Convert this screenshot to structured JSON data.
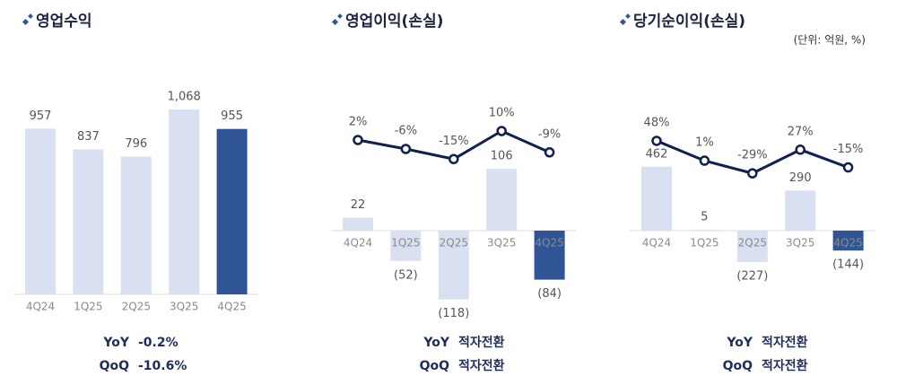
{
  "chart_data": [
    {
      "type": "bar",
      "title": "영업수익",
      "categories": [
        "4Q24",
        "1Q25",
        "2Q25",
        "3Q25",
        "4Q25"
      ],
      "series": [
        {
          "type": "bar",
          "values": [
            957,
            837,
            796,
            1068,
            955
          ],
          "value_labels": [
            "957",
            "837",
            "796",
            "1,068",
            "955"
          ],
          "colors": [
            "#d9e0f2",
            "#d9e0f2",
            "#d9e0f2",
            "#d9e0f2",
            "#2f5597"
          ]
        }
      ],
      "summary": [
        {
          "label": "YoY",
          "value": "-0.2%"
        },
        {
          "label": "QoQ",
          "value": "-10.6%"
        }
      ]
    },
    {
      "type": "combo",
      "title": "영업이익(손실)",
      "categories": [
        "4Q24",
        "1Q25",
        "2Q25",
        "3Q25",
        "4Q25"
      ],
      "series": [
        {
          "type": "bar",
          "values": [
            22,
            -52,
            -118,
            106,
            -84
          ],
          "value_labels": [
            "22",
            "(52)",
            "(118)",
            "106",
            "(84)"
          ],
          "colors": [
            "#d9e0f2",
            "#d9e0f2",
            "#d9e0f2",
            "#d9e0f2",
            "#2f5597"
          ]
        },
        {
          "type": "line",
          "axis": "y2",
          "color": "#102050",
          "values": [
            2,
            -6,
            -15,
            10,
            -9
          ],
          "value_labels": [
            "2%",
            "-6%",
            "-15%",
            "10%",
            "-9%"
          ]
        }
      ],
      "summary": [
        {
          "label": "YoY",
          "value": "적자전환"
        },
        {
          "label": "QoQ",
          "value": "적자전환"
        }
      ]
    },
    {
      "type": "combo",
      "title": "당기순이익(손실)",
      "unit": "(단위: 억원, %)",
      "categories": [
        "4Q24",
        "1Q25",
        "2Q25",
        "3Q25",
        "4Q25"
      ],
      "series": [
        {
          "type": "bar",
          "values": [
            462,
            5,
            -227,
            290,
            -144
          ],
          "value_labels": [
            "462",
            "5",
            "(227)",
            "290",
            "(144)"
          ],
          "colors": [
            "#d9e0f2",
            "#d9e0f2",
            "#d9e0f2",
            "#d9e0f2",
            "#2f5597"
          ]
        },
        {
          "type": "line",
          "axis": "y2",
          "color": "#102050",
          "values": [
            48,
            1,
            -29,
            27,
            -15
          ],
          "value_labels": [
            "48%",
            "1%",
            "-29%",
            "27%",
            "-15%"
          ]
        }
      ],
      "summary": [
        {
          "label": "YoY",
          "value": "적자전환"
        },
        {
          "label": "QoQ",
          "value": "적자전환"
        }
      ]
    }
  ]
}
